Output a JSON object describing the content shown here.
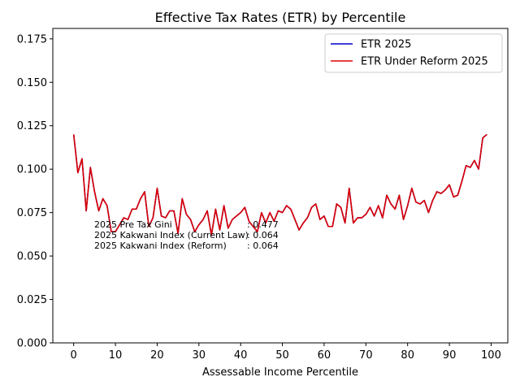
{
  "chart_data": {
    "type": "line",
    "title": "Effective Tax Rates (ETR) by Percentile",
    "xlabel": "Assessable Income Percentile",
    "ylabel": "",
    "xlim": [
      -5,
      104
    ],
    "ylim": [
      0,
      0.181
    ],
    "xticks": [
      0,
      10,
      20,
      30,
      40,
      50,
      60,
      70,
      80,
      90,
      100
    ],
    "yticks": [
      0.0,
      0.025,
      0.05,
      0.075,
      0.1,
      0.125,
      0.15,
      0.175
    ],
    "ytick_labels": [
      "0.000",
      "0.025",
      "0.050",
      "0.075",
      "0.100",
      "0.125",
      "0.150",
      "0.175"
    ],
    "grid": false,
    "legend_position": "top-right",
    "x": [
      0,
      1,
      2,
      3,
      4,
      5,
      6,
      7,
      8,
      9,
      10,
      11,
      12,
      13,
      14,
      15,
      16,
      17,
      18,
      19,
      20,
      21,
      22,
      23,
      24,
      25,
      26,
      27,
      28,
      29,
      30,
      31,
      32,
      33,
      34,
      35,
      36,
      37,
      38,
      39,
      40,
      41,
      42,
      43,
      44,
      45,
      46,
      47,
      48,
      49,
      50,
      51,
      52,
      53,
      54,
      55,
      56,
      57,
      58,
      59,
      60,
      61,
      62,
      63,
      64,
      65,
      66,
      67,
      68,
      69,
      70,
      71,
      72,
      73,
      74,
      75,
      76,
      77,
      78,
      79,
      80,
      81,
      82,
      83,
      84,
      85,
      86,
      87,
      88,
      89,
      90,
      91,
      92,
      93,
      94,
      95,
      96,
      97,
      98,
      99
    ],
    "series": [
      {
        "name": "ETR 2025",
        "color": "#0000cc",
        "values": [
          0.12,
          0.098,
          0.106,
          0.076,
          0.101,
          0.087,
          0.076,
          0.083,
          0.079,
          0.064,
          0.064,
          0.068,
          0.072,
          0.071,
          0.077,
          0.077,
          0.083,
          0.087,
          0.067,
          0.072,
          0.089,
          0.073,
          0.072,
          0.076,
          0.076,
          0.063,
          0.083,
          0.074,
          0.071,
          0.064,
          0.068,
          0.071,
          0.076,
          0.062,
          0.077,
          0.065,
          0.079,
          0.066,
          0.071,
          0.073,
          0.075,
          0.078,
          0.07,
          0.067,
          0.064,
          0.075,
          0.069,
          0.075,
          0.07,
          0.076,
          0.075,
          0.079,
          0.077,
          0.071,
          0.065,
          0.069,
          0.072,
          0.078,
          0.08,
          0.071,
          0.073,
          0.067,
          0.067,
          0.08,
          0.078,
          0.069,
          0.089,
          0.069,
          0.072,
          0.072,
          0.074,
          0.078,
          0.073,
          0.079,
          0.072,
          0.085,
          0.08,
          0.077,
          0.085,
          0.071,
          0.079,
          0.089,
          0.081,
          0.08,
          0.082,
          0.075,
          0.082,
          0.087,
          0.086,
          0.088,
          0.091,
          0.084,
          0.085,
          0.093,
          0.102,
          0.101,
          0.105,
          0.1,
          0.118,
          0.12
        ]
      },
      {
        "name": "ETR Under Reform 2025",
        "color": "#dd0000",
        "values": [
          0.12,
          0.098,
          0.106,
          0.076,
          0.101,
          0.087,
          0.076,
          0.083,
          0.079,
          0.064,
          0.064,
          0.068,
          0.072,
          0.071,
          0.077,
          0.077,
          0.083,
          0.087,
          0.067,
          0.072,
          0.089,
          0.073,
          0.072,
          0.076,
          0.076,
          0.063,
          0.083,
          0.074,
          0.071,
          0.064,
          0.068,
          0.071,
          0.076,
          0.062,
          0.077,
          0.065,
          0.079,
          0.066,
          0.071,
          0.073,
          0.075,
          0.078,
          0.07,
          0.067,
          0.064,
          0.075,
          0.069,
          0.075,
          0.07,
          0.076,
          0.075,
          0.079,
          0.077,
          0.071,
          0.065,
          0.069,
          0.072,
          0.078,
          0.08,
          0.071,
          0.073,
          0.067,
          0.067,
          0.08,
          0.078,
          0.069,
          0.089,
          0.069,
          0.072,
          0.072,
          0.074,
          0.078,
          0.073,
          0.079,
          0.072,
          0.085,
          0.08,
          0.077,
          0.085,
          0.071,
          0.079,
          0.089,
          0.081,
          0.08,
          0.082,
          0.075,
          0.082,
          0.087,
          0.086,
          0.088,
          0.091,
          0.084,
          0.085,
          0.093,
          0.102,
          0.101,
          0.105,
          0.1,
          0.118,
          0.12
        ]
      }
    ],
    "annotations": [
      {
        "label": "2025 Pre Tax Gini",
        "sep": ": 0.477"
      },
      {
        "label": "2025 Kakwani Index (Current Law)",
        "sep": ": 0.064"
      },
      {
        "label": "2025 Kakwani Index (Reform)",
        "sep": ": 0.064"
      }
    ]
  }
}
